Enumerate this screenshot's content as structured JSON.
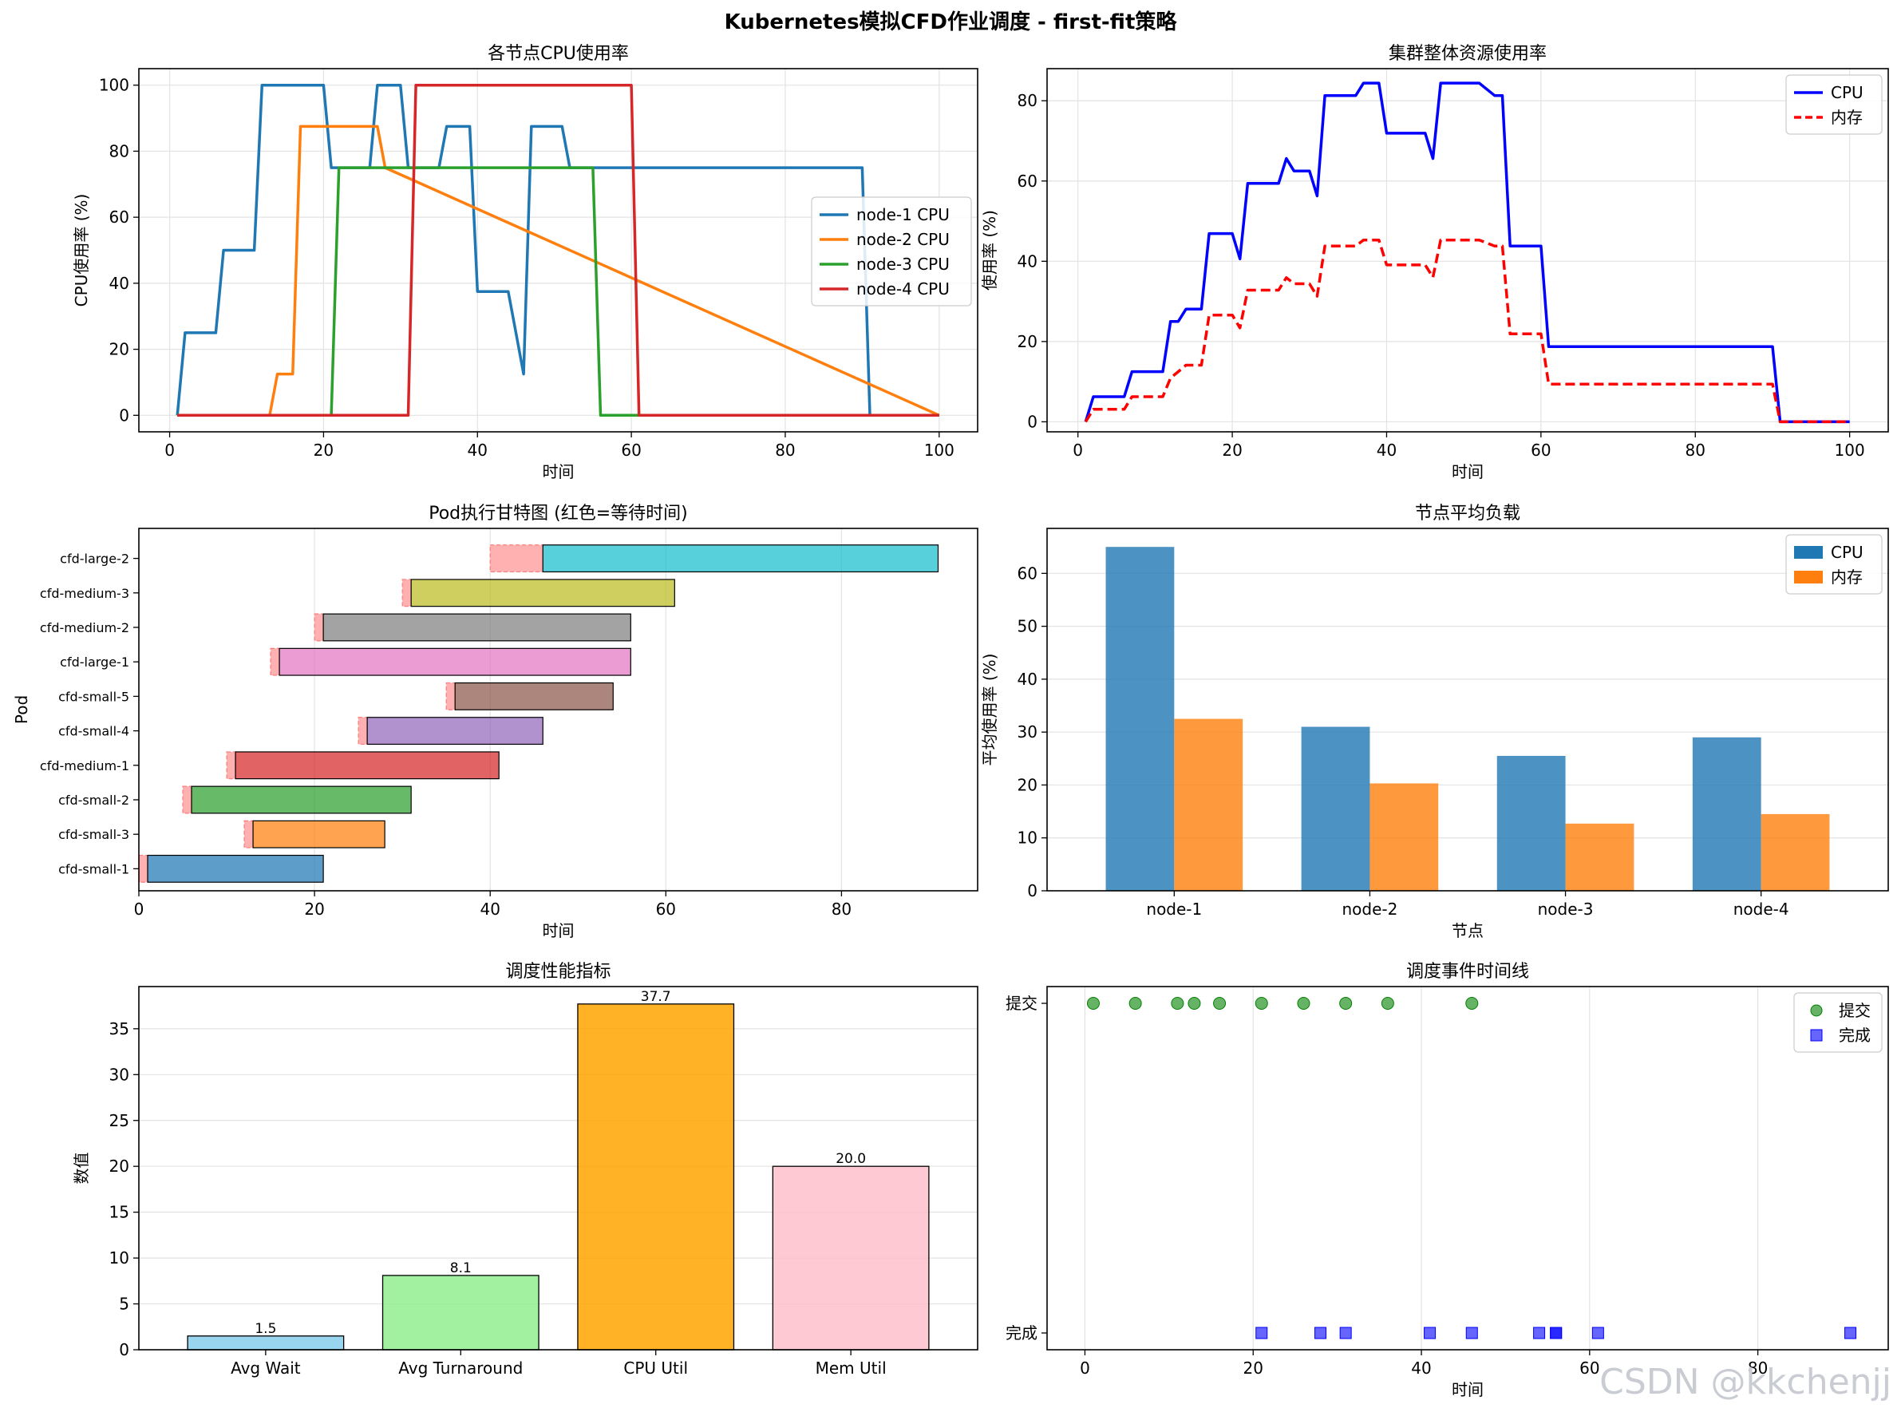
{
  "suptitle": "Kubernetes模拟CFD作业调度 - first-fit策略",
  "watermark": "CSDN @kkchenjj",
  "colors": {
    "tab_blue": "#1f77b4",
    "tab_orange": "#ff7f0e",
    "tab_green": "#2ca02c",
    "tab_red": "#d62728",
    "pure_blue": "#0000ff",
    "pure_red": "#ff0000",
    "wait": "#ffb0b0",
    "gantt": [
      "#1f77b4",
      "#ff7f0e",
      "#2ca02c",
      "#d62728",
      "#9467bd",
      "#8c564b",
      "#e377c2",
      "#7f7f7f",
      "#bcbd22",
      "#17becf"
    ],
    "metric_bars": [
      "#87ceeb",
      "#90ee90",
      "#ffa500",
      "#ffc0cb"
    ]
  },
  "chart_data": [
    {
      "id": "node_cpu",
      "type": "line",
      "title": "各节点CPU使用率",
      "xlabel": "时间",
      "ylabel": "CPU使用率 (%)",
      "xlim": [
        -4,
        105
      ],
      "ylim": [
        -5,
        105
      ],
      "xticks": [
        0,
        20,
        40,
        60,
        80,
        100
      ],
      "yticks": [
        0,
        20,
        40,
        60,
        80,
        100
      ],
      "grid": true,
      "legend_position": "center-right",
      "series": [
        {
          "name": "node-1 CPU",
          "x": [
            1,
            2,
            6,
            7,
            11,
            12,
            20,
            21,
            26,
            27,
            30,
            31,
            35,
            36,
            39,
            40,
            44,
            45,
            46,
            47,
            51,
            52,
            90,
            91,
            100
          ],
          "y": [
            0,
            25,
            25,
            50,
            50,
            100,
            100,
            75,
            75,
            100,
            100,
            75,
            75,
            87.5,
            87.5,
            37.5,
            37.5,
            25,
            12.5,
            87.5,
            87.5,
            75,
            75,
            0,
            0
          ]
        },
        {
          "name": "node-2 CPU",
          "x": [
            1,
            13,
            14,
            16,
            17,
            27,
            28,
            100
          ],
          "y": [
            0,
            0,
            12.5,
            12.5,
            87.5,
            87.5,
            75,
            0
          ]
        },
        {
          "name": "node-3 CPU",
          "x": [
            1,
            21,
            22,
            55,
            56,
            100
          ],
          "y": [
            0,
            0,
            75,
            75,
            0,
            0
          ]
        },
        {
          "name": "node-4 CPU",
          "x": [
            1,
            31,
            32,
            60,
            61,
            100
          ],
          "y": [
            0,
            0,
            100,
            100,
            0,
            0
          ]
        }
      ]
    },
    {
      "id": "cluster_util",
      "type": "line",
      "title": "集群整体资源使用率",
      "xlabel": "时间",
      "ylabel": "使用率 (%)",
      "xlim": [
        -4,
        105
      ],
      "ylim": [
        -2.5,
        88
      ],
      "xticks": [
        0,
        20,
        40,
        60,
        80,
        100
      ],
      "yticks": [
        0,
        20,
        40,
        60,
        80
      ],
      "grid": true,
      "legend_position": "top-right",
      "series": [
        {
          "name": "CPU",
          "style": "solid",
          "x": [
            1,
            2,
            6,
            7,
            11,
            12,
            13,
            14,
            16,
            17,
            20,
            21,
            22,
            26,
            27,
            28,
            30,
            31,
            32,
            36,
            37,
            39,
            40,
            44,
            45,
            46,
            47,
            51,
            52,
            54,
            55,
            56,
            60,
            61,
            90,
            91,
            100
          ],
          "y": [
            0,
            6.25,
            6.25,
            12.5,
            12.5,
            25,
            25,
            28.1,
            28.1,
            46.9,
            46.9,
            40.6,
            59.4,
            59.4,
            65.6,
            62.5,
            62.5,
            56.3,
            81.3,
            81.3,
            84.4,
            84.4,
            71.9,
            71.9,
            71.9,
            65.6,
            84.4,
            84.4,
            84.4,
            81.3,
            81.3,
            43.8,
            43.8,
            18.75,
            18.75,
            0,
            0
          ]
        },
        {
          "name": "内存",
          "style": "dashed",
          "x": [
            1,
            2,
            6,
            7,
            11,
            12,
            13,
            14,
            16,
            17,
            20,
            21,
            22,
            26,
            27,
            28,
            30,
            31,
            32,
            36,
            37,
            39,
            40,
            44,
            45,
            46,
            47,
            51,
            52,
            54,
            55,
            56,
            60,
            61,
            90,
            91,
            100
          ],
          "y": [
            0,
            3.1,
            3.1,
            6.25,
            6.25,
            10.9,
            12.5,
            14.1,
            14.1,
            26.6,
            26.6,
            23.4,
            32.8,
            32.8,
            35.9,
            34.4,
            34.4,
            31.3,
            43.8,
            43.8,
            45.3,
            45.3,
            39.1,
            39.1,
            39.1,
            36,
            45.3,
            45.3,
            45.3,
            43.8,
            43.8,
            21.9,
            21.9,
            9.4,
            9.4,
            0,
            0
          ]
        }
      ]
    },
    {
      "id": "gantt",
      "type": "bar",
      "title": "Pod执行甘特图 (红色=等待时间)",
      "xlabel": "时间",
      "ylabel": "Pod",
      "xlim": [
        0,
        95.5
      ],
      "xticks": [
        0,
        20,
        40,
        60,
        80
      ],
      "grid": true,
      "pods": [
        {
          "name": "cfd-small-1",
          "arrival": 0,
          "start": 1,
          "end": 21
        },
        {
          "name": "cfd-small-3",
          "arrival": 12,
          "start": 13,
          "end": 28
        },
        {
          "name": "cfd-small-2",
          "arrival": 5,
          "start": 6,
          "end": 31
        },
        {
          "name": "cfd-medium-1",
          "arrival": 10,
          "start": 11,
          "end": 41
        },
        {
          "name": "cfd-small-4",
          "arrival": 25,
          "start": 26,
          "end": 46
        },
        {
          "name": "cfd-small-5",
          "arrival": 35,
          "start": 36,
          "end": 54
        },
        {
          "name": "cfd-large-1",
          "arrival": 15,
          "start": 16,
          "end": 56
        },
        {
          "name": "cfd-medium-2",
          "arrival": 20,
          "start": 21,
          "end": 56
        },
        {
          "name": "cfd-medium-3",
          "arrival": 30,
          "start": 31,
          "end": 61
        },
        {
          "name": "cfd-large-2",
          "arrival": 40,
          "start": 46,
          "end": 91
        }
      ]
    },
    {
      "id": "node_avg",
      "type": "bar",
      "title": "节点平均负载",
      "xlabel": "节点",
      "ylabel": "平均使用率 (%)",
      "ylim": [
        0,
        68.5
      ],
      "yticks": [
        0,
        10,
        20,
        30,
        40,
        50,
        60
      ],
      "grid": true,
      "legend_position": "top-right",
      "categories": [
        "node-1",
        "node-2",
        "node-3",
        "node-4"
      ],
      "series": [
        {
          "name": "CPU",
          "values": [
            65,
            31,
            25.5,
            29
          ]
        },
        {
          "name": "内存",
          "values": [
            32.5,
            20.3,
            12.7,
            14.5
          ]
        }
      ]
    },
    {
      "id": "metrics",
      "type": "bar",
      "title": "调度性能指标",
      "ylabel": "数值",
      "ylim": [
        0,
        39.6
      ],
      "yticks": [
        0,
        5,
        10,
        15,
        20,
        25,
        30,
        35
      ],
      "grid": true,
      "categories": [
        "Avg Wait",
        "Avg Turnaround",
        "CPU Util",
        "Mem Util"
      ],
      "values": [
        1.5,
        8.1,
        37.7,
        20.0
      ],
      "value_labels": [
        "1.5",
        "8.1",
        "37.7",
        "20.0"
      ]
    },
    {
      "id": "events",
      "type": "scatter",
      "title": "调度事件时间线",
      "xlabel": "时间",
      "xlim": [
        -4.5,
        95.5
      ],
      "xticks": [
        0,
        20,
        40,
        60,
        80
      ],
      "yticks": [
        "完成",
        "提交"
      ],
      "grid": true,
      "legend_position": "top-right",
      "series": [
        {
          "name": "提交",
          "marker": "circle",
          "x": [
            1,
            6,
            11,
            13,
            16,
            21,
            26,
            31,
            36,
            46
          ]
        },
        {
          "name": "完成",
          "marker": "square",
          "x": [
            21,
            28,
            31,
            41,
            46,
            54,
            56,
            56,
            61,
            91
          ]
        }
      ]
    }
  ]
}
